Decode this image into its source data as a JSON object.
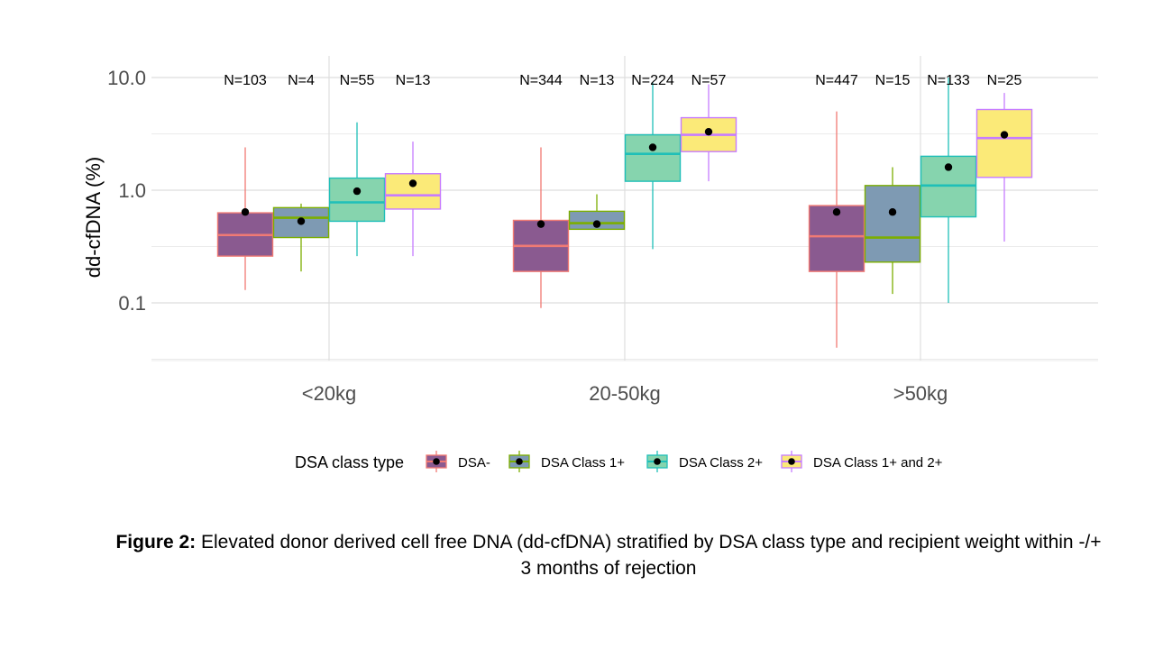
{
  "chart_data": {
    "type": "box",
    "ylabel": "dd-cfDNA (%)",
    "y_scale": "log10",
    "ylim": [
      0.03,
      14
    ],
    "y_ticks": [
      {
        "value": 0.1,
        "label": "0.1"
      },
      {
        "value": 1,
        "label": "1.0"
      },
      {
        "value": 10,
        "label": "10.0"
      }
    ],
    "categories": [
      "<20kg",
      "20-50kg",
      ">50kg"
    ],
    "grid": true,
    "legend": {
      "title": "DSA class type",
      "position": "bottom",
      "items": [
        "DSA-",
        "DSA Class 1+",
        "DSA Class 2+",
        "DSA Class 1+ and 2+"
      ]
    },
    "series": [
      {
        "name": "DSA-",
        "fill": "#8a5a90",
        "line": "#f07a74",
        "whisker": "#f07a74",
        "boxes": [
          {
            "category": "<20kg",
            "n": "N=103",
            "min": 0.13,
            "q1": 0.26,
            "median": 0.4,
            "q3": 0.63,
            "max": 2.4,
            "mean": 0.64
          },
          {
            "category": "20-50kg",
            "n": "N=344",
            "min": 0.09,
            "q1": 0.19,
            "median": 0.32,
            "q3": 0.54,
            "max": 2.4,
            "mean": 0.5
          },
          {
            "category": ">50kg",
            "n": "N=447",
            "min": 0.04,
            "q1": 0.19,
            "median": 0.39,
            "q3": 0.73,
            "max": 5.0,
            "mean": 0.64
          }
        ]
      },
      {
        "name": "DSA Class 1+",
        "fill": "#7e9ab3",
        "line": "#7cae00",
        "whisker": "#7cae00",
        "boxes": [
          {
            "category": "<20kg",
            "n": "N=4",
            "min": 0.19,
            "q1": 0.38,
            "median": 0.57,
            "q3": 0.7,
            "max": 0.76,
            "mean": 0.53
          },
          {
            "category": "20-50kg",
            "n": "N=13",
            "min": 0.45,
            "q1": 0.45,
            "median": 0.51,
            "q3": 0.65,
            "max": 0.92,
            "mean": 0.5
          },
          {
            "category": ">50kg",
            "n": "N=15",
            "min": 0.12,
            "q1": 0.23,
            "median": 0.38,
            "q3": 1.1,
            "max": 1.6,
            "mean": 0.64
          }
        ]
      },
      {
        "name": "DSA Class 2+",
        "fill": "#86d4ae",
        "line": "#1fbfb8",
        "whisker": "#1fbfb8",
        "boxes": [
          {
            "category": "<20kg",
            "n": "N=55",
            "min": 0.26,
            "q1": 0.53,
            "median": 0.78,
            "q3": 1.28,
            "max": 4.0,
            "mean": 0.98
          },
          {
            "category": "20-50kg",
            "n": "N=224",
            "min": 0.3,
            "q1": 1.2,
            "median": 2.1,
            "q3": 3.1,
            "max": 9.0,
            "mean": 2.4
          },
          {
            "category": ">50kg",
            "n": "N=133",
            "min": 0.1,
            "q1": 0.58,
            "median": 1.1,
            "q3": 2.0,
            "max": 10.0,
            "mean": 1.6
          }
        ]
      },
      {
        "name": "DSA Class 1+ and 2+",
        "fill": "#fbea78",
        "line": "#c77cff",
        "whisker": "#c77cff",
        "boxes": [
          {
            "category": "<20kg",
            "n": "N=13",
            "min": 0.26,
            "q1": 0.68,
            "median": 0.9,
            "q3": 1.4,
            "max": 2.7,
            "mean": 1.15
          },
          {
            "category": "20-50kg",
            "n": "N=57",
            "min": 1.2,
            "q1": 2.2,
            "median": 3.1,
            "q3": 4.4,
            "max": 8.7,
            "mean": 3.3
          },
          {
            "category": ">50kg",
            "n": "N=25",
            "min": 0.35,
            "q1": 1.3,
            "median": 2.9,
            "q3": 5.2,
            "max": 7.3,
            "mean": 3.1
          }
        ]
      }
    ]
  },
  "caption": {
    "label": "Figure 2:",
    "text": "Elevated donor derived cell free DNA (dd-cfDNA) stratified by DSA class type and recipient weight within -/+ 3 months of rejection"
  }
}
